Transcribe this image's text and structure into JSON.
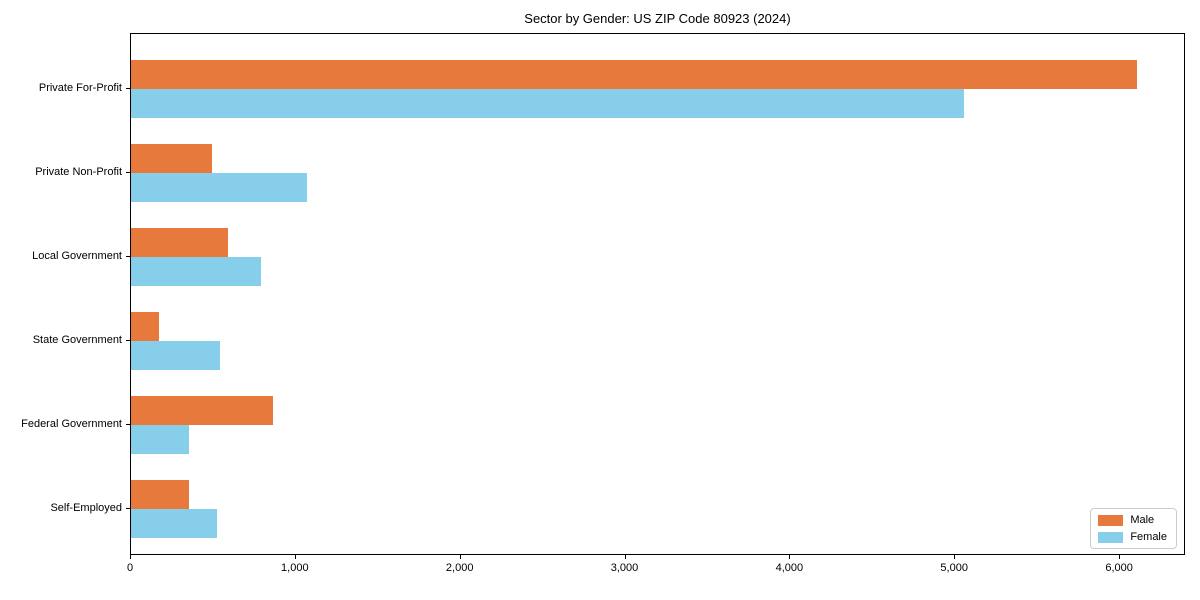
{
  "figure": {
    "background": "#ffffff"
  },
  "chart_data": {
    "type": "bar",
    "orientation": "horizontal",
    "title": "Sector by Gender: US ZIP Code 80923 (2024)",
    "categories": [
      "Private For-Profit",
      "Private Non-Profit",
      "Local Government",
      "State Government",
      "Federal Government",
      "Self-Employed"
    ],
    "series": [
      {
        "name": "Male",
        "color": "#e8793c",
        "values": [
          6100,
          490,
          590,
          170,
          860,
          350
        ]
      },
      {
        "name": "Female",
        "color": "#87ceeb",
        "values": [
          5050,
          1070,
          790,
          540,
          350,
          520
        ]
      }
    ],
    "xlabel": "",
    "ylabel": "",
    "xlim": [
      0,
      6400
    ],
    "xticks": [
      0,
      1000,
      2000,
      3000,
      4000,
      5000,
      6000
    ],
    "xtick_labels": [
      "0",
      "1,000",
      "2,000",
      "3,000",
      "4,000",
      "5,000",
      "6,000"
    ],
    "grid": false,
    "legend": {
      "position": "lower right"
    },
    "axis_color": "#000000"
  }
}
